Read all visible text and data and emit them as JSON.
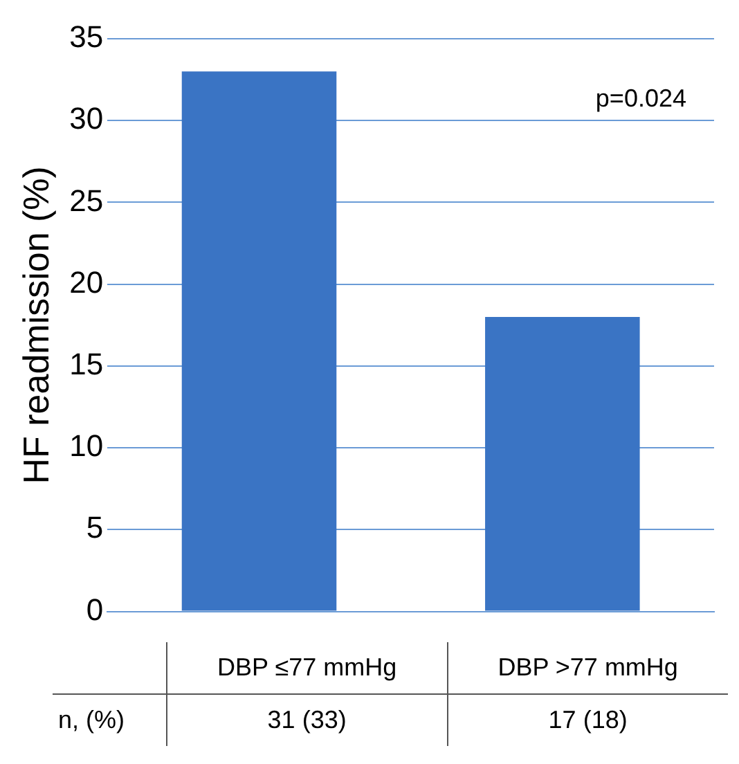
{
  "chart_data": {
    "type": "bar",
    "ylabel": "HF readmission (%)",
    "categories": [
      "DBP ≤77 mmHg",
      "DBP >77 mmHg"
    ],
    "values": [
      33,
      18
    ],
    "value_labels": [
      "31 (33)",
      "17 (18)"
    ],
    "color": "#3a74c4",
    "ylim": [
      0,
      35
    ],
    "yticks": [
      0,
      5,
      10,
      15,
      20,
      25,
      30,
      35
    ],
    "grid": "y",
    "annotations": [
      {
        "text": "p=0.024"
      },
      {
        "text": "n, (%)"
      }
    ]
  }
}
